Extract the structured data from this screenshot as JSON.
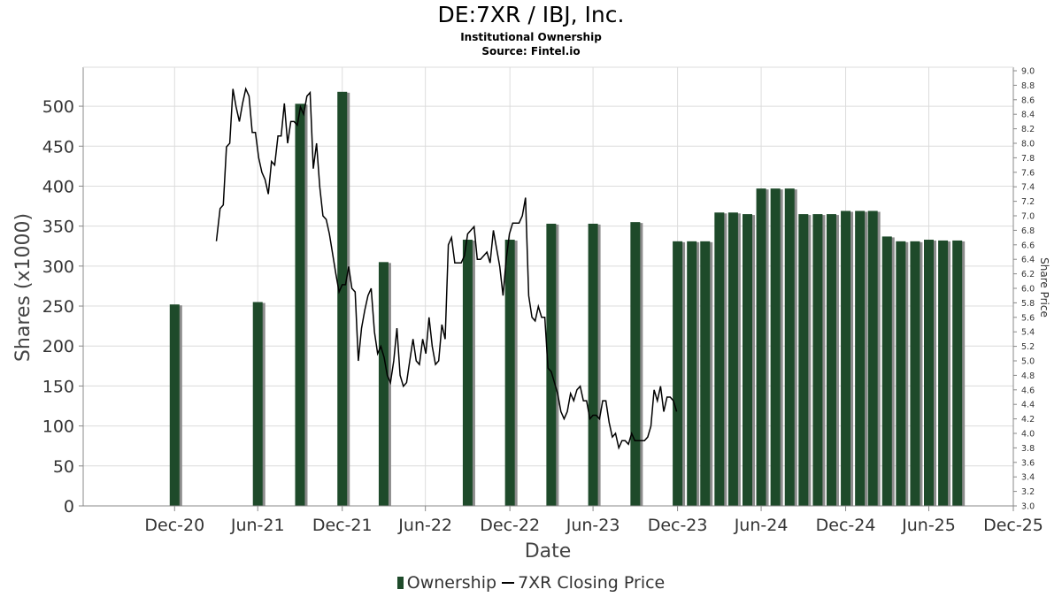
{
  "chart_data": {
    "type": "bar",
    "title": "DE:7XR / IBJ, Inc.",
    "subtitle_lines": [
      "Institutional Ownership",
      "Source: Fintel.io"
    ],
    "xlabel": "Date",
    "ylabel": "Shares (x1000)",
    "y2label": "Share Price",
    "ylim": [
      0,
      520
    ],
    "y2lim": [
      3.0,
      9.0
    ],
    "x_ticks": [
      "Dec-20",
      "Jun-21",
      "Dec-21",
      "Jun-22",
      "Dec-22",
      "Jun-23",
      "Dec-23",
      "Jun-24",
      "Dec-24",
      "Jun-25",
      "Dec-25"
    ],
    "y_ticks": [
      "0",
      "50",
      "100",
      "150",
      "200",
      "250",
      "300",
      "350",
      "400",
      "450",
      "500"
    ],
    "y2_ticks": [
      "3.0",
      "3.2",
      "3.4",
      "3.6",
      "3.8",
      "4.0",
      "4.2",
      "4.4",
      "4.6",
      "4.8",
      "5.0",
      "5.2",
      "5.4",
      "5.6",
      "5.8",
      "6.0",
      "6.2",
      "6.4",
      "6.6",
      "6.8",
      "7.0",
      "7.2",
      "7.4",
      "7.6",
      "7.8",
      "8.0",
      "8.2",
      "8.4",
      "8.6",
      "8.8",
      "9.0"
    ],
    "grid": true,
    "legend_position": "bottom",
    "series": [
      {
        "name": "Ownership",
        "kind": "bar",
        "color": "#1e4a2a",
        "points": [
          [
            "2020-12-31",
            252
          ],
          [
            "2021-06-30",
            255
          ],
          [
            "2021-09-30",
            503
          ],
          [
            "2021-12-31",
            518
          ],
          [
            "2022-03-31",
            305
          ],
          [
            "2022-09-30",
            333
          ],
          [
            "2022-12-31",
            333
          ],
          [
            "2023-03-31",
            353
          ],
          [
            "2023-06-30",
            353
          ],
          [
            "2023-09-30",
            355
          ],
          [
            "2023-12-31",
            331
          ],
          [
            "2024-01-31",
            331
          ],
          [
            "2024-02-29",
            331
          ],
          [
            "2024-03-31",
            367
          ],
          [
            "2024-04-30",
            367
          ],
          [
            "2024-05-31",
            365
          ],
          [
            "2024-06-30",
            397
          ],
          [
            "2024-07-31",
            397
          ],
          [
            "2024-08-31",
            397
          ],
          [
            "2024-09-30",
            365
          ],
          [
            "2024-10-31",
            365
          ],
          [
            "2024-11-30",
            365
          ],
          [
            "2024-12-31",
            369
          ],
          [
            "2025-01-31",
            369
          ],
          [
            "2025-02-28",
            369
          ],
          [
            "2025-03-31",
            337
          ],
          [
            "2025-04-30",
            331
          ],
          [
            "2025-05-31",
            331
          ],
          [
            "2025-06-30",
            333
          ],
          [
            "2025-07-31",
            332
          ],
          [
            "2025-08-31",
            332
          ]
        ]
      },
      {
        "name": "7XR Closing Price",
        "kind": "line",
        "axis": "right",
        "color": "#000000",
        "points": [
          [
            "2021-04-01",
            6.65
          ],
          [
            "2021-04-09",
            7.1
          ],
          [
            "2021-04-16",
            7.15
          ],
          [
            "2021-04-23",
            7.95
          ],
          [
            "2021-04-30",
            8.0
          ],
          [
            "2021-05-07",
            8.75
          ],
          [
            "2021-05-14",
            8.5
          ],
          [
            "2021-05-21",
            8.3
          ],
          [
            "2021-05-28",
            8.55
          ],
          [
            "2021-06-04",
            8.75
          ],
          [
            "2021-06-11",
            8.65
          ],
          [
            "2021-06-18",
            8.15
          ],
          [
            "2021-06-25",
            8.15
          ],
          [
            "2021-07-02",
            7.8
          ],
          [
            "2021-07-09",
            7.6
          ],
          [
            "2021-07-16",
            7.5
          ],
          [
            "2021-07-23",
            7.3
          ],
          [
            "2021-07-30",
            7.75
          ],
          [
            "2021-08-06",
            7.7
          ],
          [
            "2021-08-13",
            8.1
          ],
          [
            "2021-08-20",
            8.1
          ],
          [
            "2021-08-27",
            8.55
          ],
          [
            "2021-09-03",
            8.0
          ],
          [
            "2021-09-10",
            8.3
          ],
          [
            "2021-09-17",
            8.3
          ],
          [
            "2021-09-24",
            8.25
          ],
          [
            "2021-10-01",
            8.5
          ],
          [
            "2021-10-08",
            8.4
          ],
          [
            "2021-10-15",
            8.65
          ],
          [
            "2021-10-22",
            8.7
          ],
          [
            "2021-10-29",
            7.65
          ],
          [
            "2021-11-05",
            8.0
          ],
          [
            "2021-11-12",
            7.4
          ],
          [
            "2021-11-19",
            7.0
          ],
          [
            "2021-11-26",
            6.95
          ],
          [
            "2021-12-03",
            6.75
          ],
          [
            "2021-12-17",
            6.2
          ],
          [
            "2021-12-24",
            5.95
          ],
          [
            "2021-12-31",
            6.05
          ],
          [
            "2022-01-07",
            6.05
          ],
          [
            "2022-01-14",
            6.3
          ],
          [
            "2022-01-21",
            6.0
          ],
          [
            "2022-01-28",
            5.95
          ],
          [
            "2022-02-04",
            5.0
          ],
          [
            "2022-02-11",
            5.45
          ],
          [
            "2022-02-18",
            5.7
          ],
          [
            "2022-02-25",
            5.9
          ],
          [
            "2022-03-04",
            6.0
          ],
          [
            "2022-03-11",
            5.4
          ],
          [
            "2022-03-18",
            5.1
          ],
          [
            "2022-03-25",
            5.2
          ],
          [
            "2022-04-01",
            5.05
          ],
          [
            "2022-04-08",
            4.8
          ],
          [
            "2022-04-15",
            4.7
          ],
          [
            "2022-04-22",
            5.0
          ],
          [
            "2022-04-29",
            5.45
          ],
          [
            "2022-05-06",
            4.8
          ],
          [
            "2022-05-13",
            4.65
          ],
          [
            "2022-05-20",
            4.7
          ],
          [
            "2022-05-27",
            5.0
          ],
          [
            "2022-06-03",
            5.3
          ],
          [
            "2022-06-10",
            5.0
          ],
          [
            "2022-06-17",
            4.95
          ],
          [
            "2022-06-24",
            5.3
          ],
          [
            "2022-07-01",
            5.1
          ],
          [
            "2022-07-08",
            5.6
          ],
          [
            "2022-07-15",
            5.2
          ],
          [
            "2022-07-22",
            4.95
          ],
          [
            "2022-07-29",
            5.0
          ],
          [
            "2022-08-05",
            5.5
          ],
          [
            "2022-08-12",
            5.3
          ],
          [
            "2022-08-19",
            6.6
          ],
          [
            "2022-08-26",
            6.7
          ],
          [
            "2022-09-02",
            6.35
          ],
          [
            "2022-09-09",
            6.35
          ],
          [
            "2022-09-16",
            6.35
          ],
          [
            "2022-09-23",
            6.45
          ],
          [
            "2022-09-30",
            6.75
          ],
          [
            "2022-10-07",
            6.8
          ],
          [
            "2022-10-14",
            6.85
          ],
          [
            "2022-10-21",
            6.4
          ],
          [
            "2022-10-28",
            6.4
          ],
          [
            "2022-11-04",
            6.45
          ],
          [
            "2022-11-11",
            6.5
          ],
          [
            "2022-11-18",
            6.35
          ],
          [
            "2022-11-25",
            6.8
          ],
          [
            "2022-12-02",
            6.55
          ],
          [
            "2022-12-09",
            6.3
          ],
          [
            "2022-12-16",
            5.9
          ],
          [
            "2022-12-23",
            6.4
          ],
          [
            "2022-12-30",
            6.75
          ],
          [
            "2023-01-06",
            6.9
          ],
          [
            "2023-01-13",
            6.9
          ],
          [
            "2023-01-20",
            6.9
          ],
          [
            "2023-01-27",
            7.0
          ],
          [
            "2023-02-03",
            7.25
          ],
          [
            "2023-02-10",
            5.9
          ],
          [
            "2023-02-17",
            5.6
          ],
          [
            "2023-02-24",
            5.55
          ],
          [
            "2023-03-03",
            5.75
          ],
          [
            "2023-03-10",
            5.6
          ],
          [
            "2023-03-17",
            5.6
          ],
          [
            "2023-03-24",
            4.9
          ],
          [
            "2023-03-31",
            4.85
          ],
          [
            "2023-04-07",
            4.7
          ],
          [
            "2023-04-14",
            4.55
          ],
          [
            "2023-04-21",
            4.3
          ],
          [
            "2023-04-28",
            4.2
          ],
          [
            "2023-05-05",
            4.3
          ],
          [
            "2023-05-12",
            4.55
          ],
          [
            "2023-05-19",
            4.45
          ],
          [
            "2023-05-26",
            4.6
          ],
          [
            "2023-06-02",
            4.65
          ],
          [
            "2023-06-09",
            4.45
          ],
          [
            "2023-06-16",
            4.45
          ],
          [
            "2023-06-23",
            4.2
          ],
          [
            "2023-06-30",
            4.25
          ],
          [
            "2023-07-07",
            4.25
          ],
          [
            "2023-07-14",
            4.2
          ],
          [
            "2023-07-21",
            4.45
          ],
          [
            "2023-07-28",
            4.45
          ],
          [
            "2023-08-04",
            4.15
          ],
          [
            "2023-08-11",
            3.95
          ],
          [
            "2023-08-18",
            4.0
          ],
          [
            "2023-08-25",
            3.8
          ],
          [
            "2023-09-01",
            3.9
          ],
          [
            "2023-09-08",
            3.9
          ],
          [
            "2023-09-15",
            3.85
          ],
          [
            "2023-09-22",
            4.0
          ],
          [
            "2023-09-29",
            3.9
          ],
          [
            "2023-10-06",
            3.9
          ],
          [
            "2023-10-13",
            3.9
          ],
          [
            "2023-10-20",
            3.9
          ],
          [
            "2023-10-27",
            3.95
          ],
          [
            "2023-11-03",
            4.1
          ],
          [
            "2023-11-10",
            4.6
          ],
          [
            "2023-11-17",
            4.45
          ],
          [
            "2023-11-24",
            4.65
          ],
          [
            "2023-12-01",
            4.3
          ],
          [
            "2023-12-08",
            4.5
          ],
          [
            "2023-12-15",
            4.5
          ],
          [
            "2023-12-22",
            4.45
          ],
          [
            "2023-12-29",
            4.3
          ]
        ]
      }
    ]
  },
  "legend": {
    "bar_label": "Ownership",
    "line_label": "7XR Closing Price"
  },
  "colors": {
    "bar": "#1e4a2a",
    "bar_shadow": "#8c8c8c",
    "price_line": "#000000",
    "grid": "#dcdcdc",
    "axis": "#888888"
  }
}
